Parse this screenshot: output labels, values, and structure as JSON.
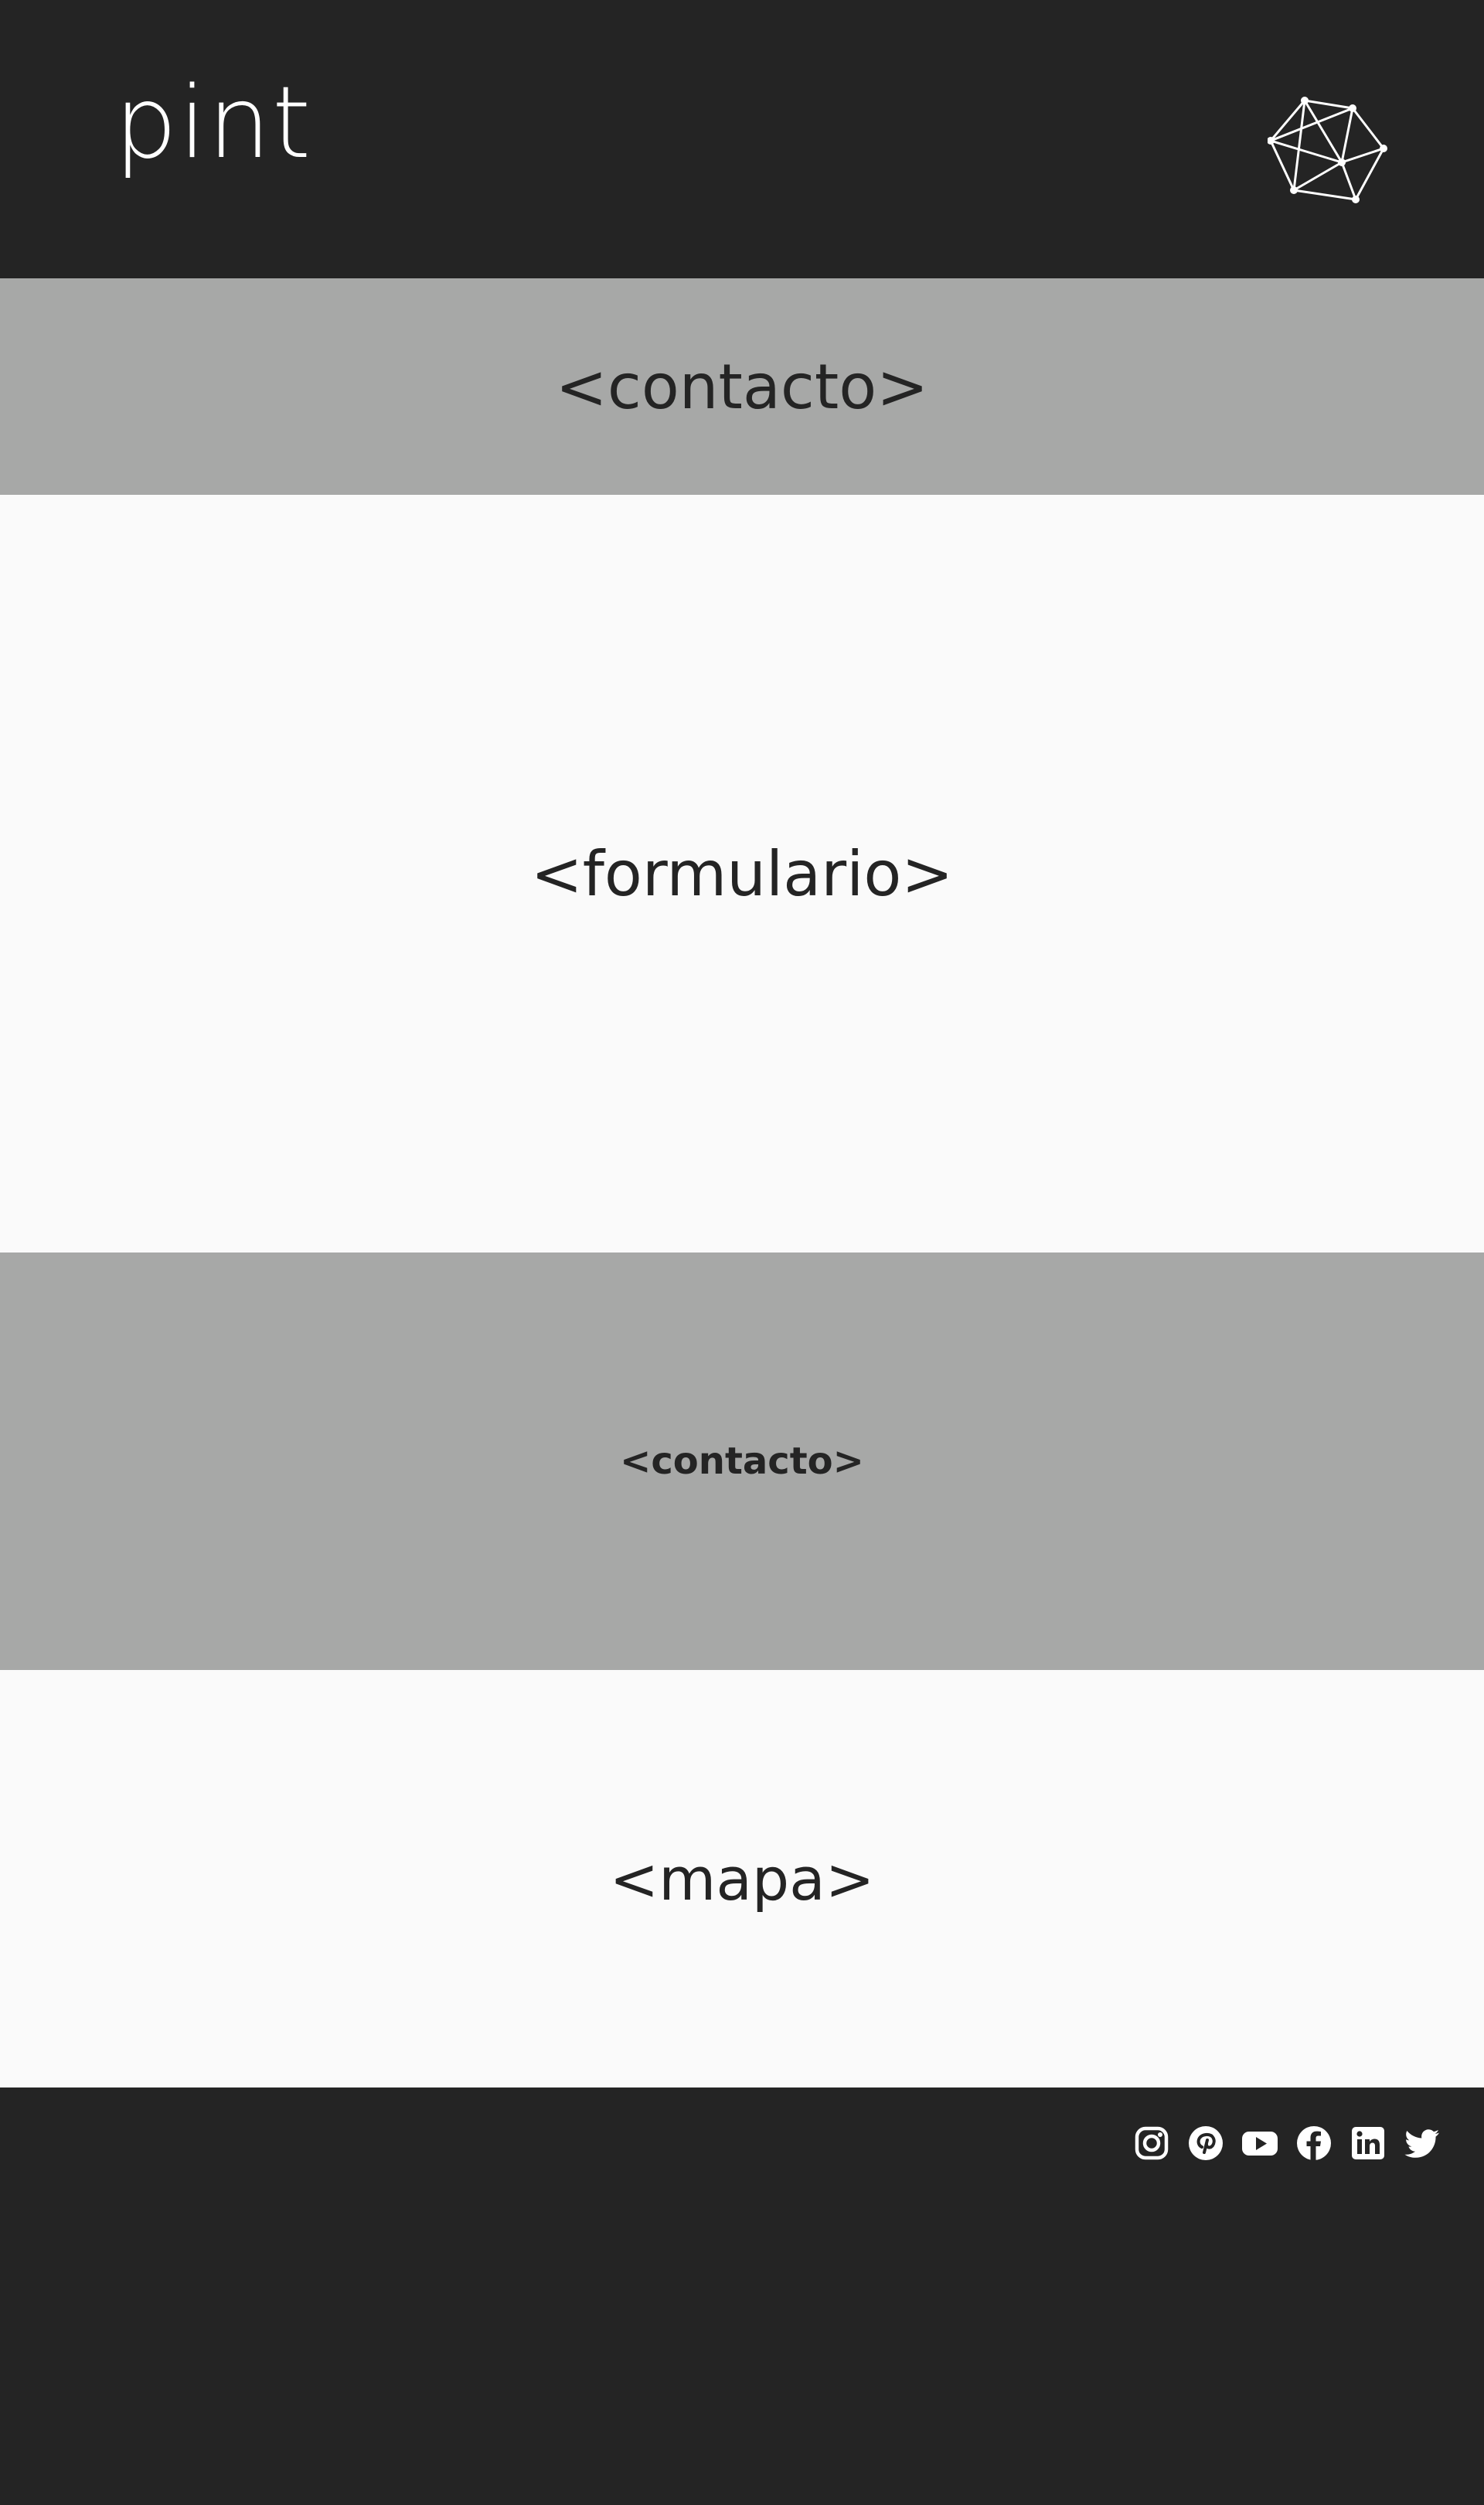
{
  "header": {
    "logo_text": "pint",
    "emblem_icon": "polyhedron-network-icon"
  },
  "sections": {
    "title": "<contacto>",
    "form": "<formulario>",
    "contact": "<contacto>",
    "map": "<mapa>"
  },
  "footer": {
    "social": [
      {
        "name": "instagram-icon"
      },
      {
        "name": "pinterest-icon"
      },
      {
        "name": "youtube-icon"
      },
      {
        "name": "facebook-icon"
      },
      {
        "name": "linkedin-icon"
      },
      {
        "name": "twitter-icon"
      }
    ]
  },
  "colors": {
    "dark": "#242424",
    "gray": "#a7a8a7",
    "light": "#fafafa",
    "white": "#ffffff"
  }
}
